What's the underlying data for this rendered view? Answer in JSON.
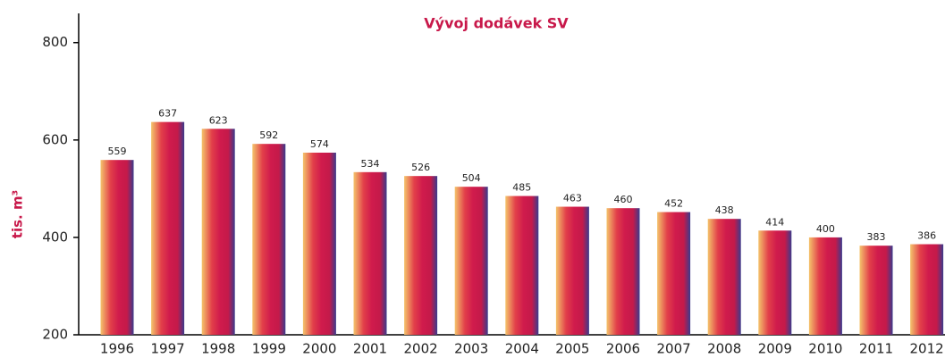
{
  "chart_data": {
    "type": "bar",
    "title": "Vývoj dodávek SV",
    "y_label": "tis. m³",
    "categories": [
      "1996",
      "1997",
      "1998",
      "1999",
      "2000",
      "2001",
      "2002",
      "2003",
      "2004",
      "2005",
      "2006",
      "2007",
      "2008",
      "2009",
      "2010",
      "2011",
      "2012"
    ],
    "values": [
      559,
      637,
      623,
      592,
      574,
      534,
      526,
      504,
      485,
      463,
      460,
      452,
      438,
      414,
      400,
      383,
      386
    ],
    "gradient": [
      "#f4c46c",
      "#e2404a",
      "#d01b4c",
      "#c41a4a",
      "#3b3b8c"
    ],
    "ylim": [
      200,
      860
    ],
    "yticks": [
      200,
      400,
      600,
      800
    ],
    "grid": false
  }
}
